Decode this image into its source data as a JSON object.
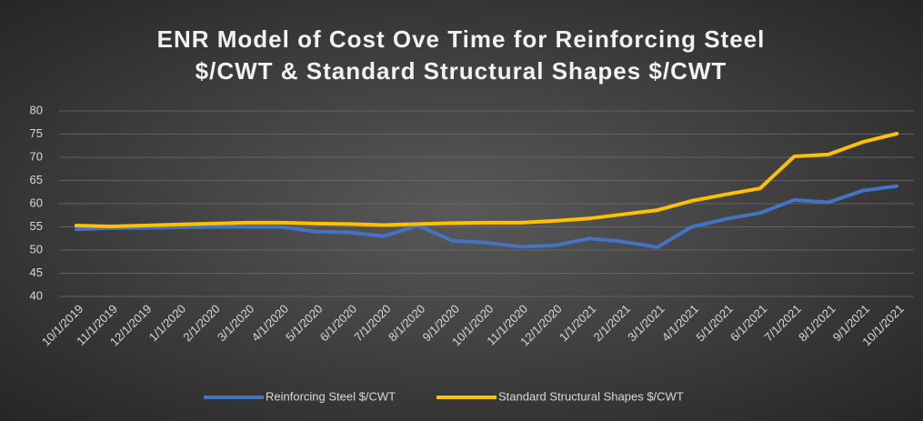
{
  "chart_data": {
    "type": "line",
    "title": [
      "ENR Model of Cost Ove Time for Reinforcing Steel",
      "$/CWT & Standard Structural Shapes $/CWT"
    ],
    "categories": [
      "10/1/2019",
      "11/1/2019",
      "12/1/2019",
      "1/1/2020",
      "2/1/2020",
      "3/1/2020",
      "4/1/2020",
      "5/1/2020",
      "6/1/2020",
      "7/1/2020",
      "8/1/2020",
      "9/1/2020",
      "10/1/2020",
      "11/1/2020",
      "12/1/2020",
      "1/1/2021",
      "2/1/2021",
      "3/1/2021",
      "4/1/2021",
      "5/1/2021",
      "6/1/2021",
      "7/1/2021",
      "8/1/2021",
      "9/1/2021",
      "10/1/2021"
    ],
    "series": [
      {
        "name": "Reinforcing Steel $/CWT",
        "color": "#4472c4",
        "values": [
          54.5,
          54.7,
          54.8,
          54.9,
          55,
          55,
          55,
          54,
          53.8,
          53,
          55.3,
          52,
          51.6,
          50.7,
          51,
          52.5,
          51.8,
          50.6,
          55,
          56.7,
          58,
          60.8,
          60.3,
          62.8,
          63.8
        ]
      },
      {
        "name": "Standard Structural Shapes $/CWT",
        "color": "#ffc000",
        "values": [
          55.3,
          55.1,
          55.3,
          55.5,
          55.7,
          55.9,
          55.9,
          55.7,
          55.6,
          55.4,
          55.6,
          55.8,
          55.9,
          55.9,
          56.3,
          56.8,
          57.7,
          58.6,
          60.6,
          62,
          63.3,
          70.2,
          70.6,
          73.3,
          75.1
        ]
      }
    ],
    "ylim": [
      40,
      80
    ],
    "yticks": [
      40,
      45,
      50,
      55,
      60,
      65,
      70,
      75,
      80
    ],
    "grid": true
  }
}
